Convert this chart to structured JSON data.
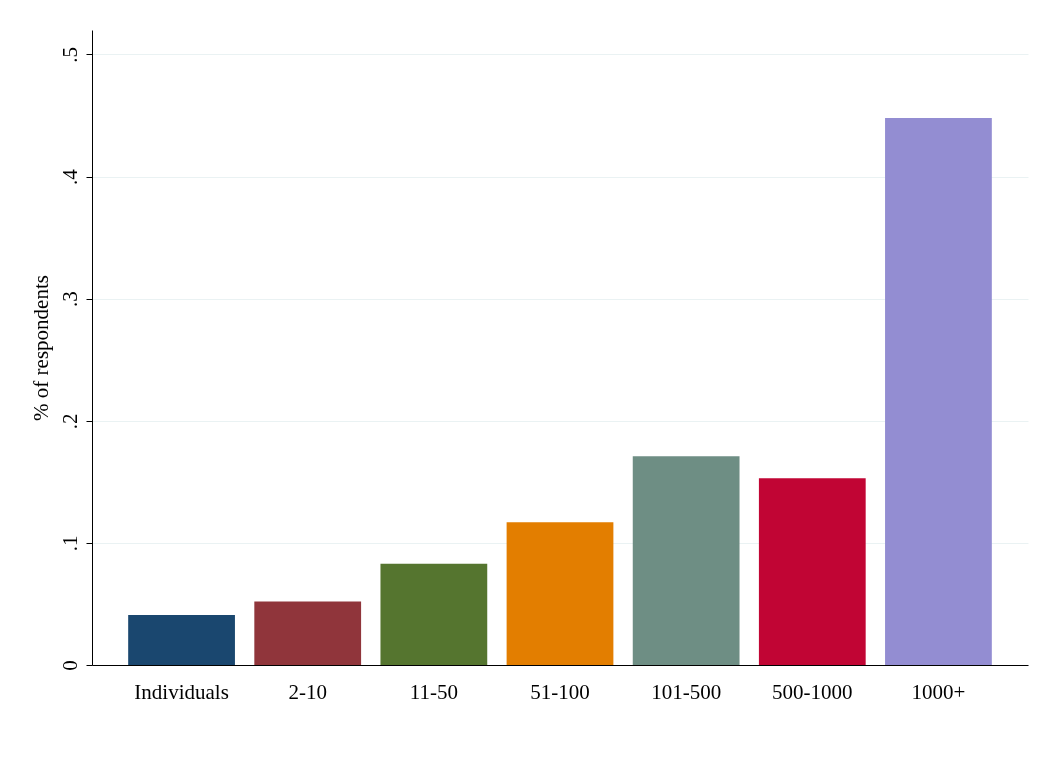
{
  "chart_data": {
    "type": "bar",
    "ylabel": "% of respondents",
    "categories": [
      "Individuals",
      "2-10",
      "11-50",
      "51-100",
      "101-500",
      "500-1000",
      "1000+"
    ],
    "values": [
      0.041,
      0.052,
      0.083,
      0.117,
      0.171,
      0.153,
      0.448
    ],
    "colors": [
      "#1a476f",
      "#90353b",
      "#55752f",
      "#e37e00",
      "#6e8e84",
      "#c10534",
      "#938dd2"
    ],
    "ylim": [
      0,
      0.52
    ],
    "yticks": [
      0,
      {
        "value": 0.1,
        "label": ".1"
      },
      {
        "value": 0.2,
        "label": ".2"
      },
      {
        "value": 0.3,
        "label": ".3"
      },
      {
        "value": 0.4,
        "label": ".4"
      },
      {
        "value": 0.5,
        "label": ".5"
      }
    ],
    "grid": "y",
    "legend": false
  }
}
